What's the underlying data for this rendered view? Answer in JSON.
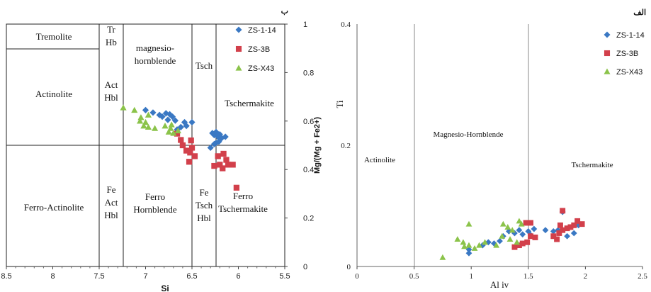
{
  "chart_data": [
    {
      "panel_label": "ب",
      "type": "scatter",
      "xlabel": "Si",
      "ylabel": "Mg/(Mg + Fe2+)",
      "xlim": [
        8.5,
        5.5
      ],
      "ylim": [
        0,
        1
      ],
      "x_ticks": [
        "8.5",
        "8",
        "7.5",
        "7",
        "6.5",
        "6",
        "5.5"
      ],
      "y_ticks": [
        "0",
        "0.2",
        "0.4",
        "0.6",
        "0.8",
        "1"
      ],
      "legend_position": "top-right",
      "field_labels": [
        {
          "text": [
            "Tremolite"
          ]
        },
        {
          "text": [
            "Tr",
            "Hb"
          ]
        },
        {
          "text": [
            "magnesio-",
            "hornblende"
          ]
        },
        {
          "text": [
            "Tsch"
          ]
        },
        {
          "text": [
            "Actinolite"
          ]
        },
        {
          "text": [
            "Act",
            "Hbl"
          ]
        },
        {
          "text": [
            "Tschermakite"
          ]
        },
        {
          "text": [
            "Ferro-Actinolite"
          ]
        },
        {
          "text": [
            "Fe",
            "Act",
            "Hbl"
          ]
        },
        {
          "text": [
            "Ferro",
            "Hornblende"
          ]
        },
        {
          "text": [
            "Fe",
            "Tsch",
            "Hbl"
          ]
        },
        {
          "text": [
            "Ferro",
            "Tschermakite"
          ]
        }
      ],
      "series": [
        {
          "name": "ZS-1-14",
          "marker": "diamond",
          "color": "#3a78c3",
          "points": [
            [
              7,
              0.645
            ],
            [
              6.92,
              0.635
            ],
            [
              6.85,
              0.625
            ],
            [
              6.78,
              0.632
            ],
            [
              6.74,
              0.628
            ],
            [
              6.82,
              0.618
            ],
            [
              6.71,
              0.618
            ],
            [
              6.76,
              0.605
            ],
            [
              6.68,
              0.602
            ],
            [
              6.66,
              0.565
            ],
            [
              6.58,
              0.595
            ],
            [
              6.62,
              0.575
            ],
            [
              6.56,
              0.58
            ],
            [
              6.5,
              0.595
            ],
            [
              6.28,
              0.55
            ],
            [
              6.26,
              0.542
            ],
            [
              6.24,
              0.555
            ],
            [
              6.22,
              0.535
            ],
            [
              6.2,
              0.545
            ],
            [
              6.18,
              0.53
            ],
            [
              6.14,
              0.535
            ],
            [
              6.21,
              0.515
            ],
            [
              6.24,
              0.51
            ],
            [
              6.3,
              0.49
            ],
            [
              6.26,
              0.505
            ]
          ]
        },
        {
          "name": "ZS-3B",
          "marker": "square",
          "color": "#d2404b",
          "points": [
            [
              6.66,
              0.548
            ],
            [
              6.62,
              0.522
            ],
            [
              6.6,
              0.5
            ],
            [
              6.56,
              0.478
            ],
            [
              6.52,
              0.47
            ],
            [
              6.5,
              0.49
            ],
            [
              6.47,
              0.455
            ],
            [
              6.53,
              0.432
            ],
            [
              6.51,
              0.52
            ],
            [
              6.22,
              0.455
            ],
            [
              6.16,
              0.465
            ],
            [
              6.13,
              0.44
            ],
            [
              6.26,
              0.415
            ],
            [
              6.2,
              0.42
            ],
            [
              6.17,
              0.405
            ],
            [
              6.11,
              0.42
            ],
            [
              6.06,
              0.42
            ],
            [
              6.02,
              0.325
            ]
          ]
        },
        {
          "name": "ZS-X43",
          "marker": "triangle",
          "color": "#8bc34a",
          "points": [
            [
              7.24,
              0.655
            ],
            [
              7.12,
              0.645
            ],
            [
              7.05,
              0.615
            ],
            [
              6.97,
              0.625
            ],
            [
              7.06,
              0.6
            ],
            [
              7.0,
              0.595
            ],
            [
              6.97,
              0.575
            ],
            [
              7.02,
              0.58
            ],
            [
              6.9,
              0.57
            ],
            [
              6.79,
              0.58
            ],
            [
              6.73,
              0.57
            ],
            [
              6.75,
              0.555
            ],
            [
              6.7,
              0.55
            ],
            [
              6.65,
              0.56
            ],
            [
              6.72,
              0.585
            ]
          ]
        }
      ]
    },
    {
      "panel_label": "الف",
      "type": "scatter",
      "xlabel": "Al iv",
      "ylabel": "Ti",
      "xlim": [
        0,
        2.5
      ],
      "ylim": [
        0,
        0.4
      ],
      "x_ticks": [
        "0",
        "0.5",
        "1",
        "1.5",
        "2",
        "2.5"
      ],
      "y_ticks": [
        "0",
        "0.2",
        "0.4"
      ],
      "legend_position": "top-right",
      "field_labels": [
        {
          "text": [
            "Actinolite"
          ]
        },
        {
          "text": [
            "Magnesio-Hornblende"
          ]
        },
        {
          "text": [
            "Tschermakite"
          ]
        }
      ],
      "series": [
        {
          "name": "ZS-1-14",
          "marker": "diamond",
          "color": "#3a78c3",
          "points": [
            [
              0.98,
              0.022
            ],
            [
              0.98,
              0.028
            ],
            [
              1.1,
              0.035
            ],
            [
              1.15,
              0.04
            ],
            [
              1.2,
              0.038
            ],
            [
              1.25,
              0.042
            ],
            [
              1.28,
              0.05
            ],
            [
              1.33,
              0.058
            ],
            [
              1.38,
              0.055
            ],
            [
              1.42,
              0.06
            ],
            [
              1.45,
              0.053
            ],
            [
              1.5,
              0.058
            ],
            [
              1.52,
              0.052
            ],
            [
              1.55,
              0.062
            ],
            [
              1.65,
              0.06
            ],
            [
              1.72,
              0.058
            ],
            [
              1.76,
              0.06
            ],
            [
              1.8,
              0.09
            ],
            [
              1.84,
              0.05
            ],
            [
              1.9,
              0.055
            ],
            [
              1.94,
              0.068
            ]
          ]
        },
        {
          "name": "ZS-3B",
          "marker": "square",
          "color": "#d2404b",
          "points": [
            [
              1.38,
              0.032
            ],
            [
              1.42,
              0.035
            ],
            [
              1.45,
              0.038
            ],
            [
              1.49,
              0.04
            ],
            [
              1.52,
              0.05
            ],
            [
              1.56,
              0.048
            ],
            [
              1.48,
              0.072
            ],
            [
              1.52,
              0.072
            ],
            [
              1.72,
              0.05
            ],
            [
              1.75,
              0.045
            ],
            [
              1.78,
              0.068
            ],
            [
              1.8,
              0.06
            ],
            [
              1.84,
              0.063
            ],
            [
              1.87,
              0.065
            ],
            [
              1.9,
              0.068
            ],
            [
              1.93,
              0.075
            ],
            [
              1.97,
              0.07
            ],
            [
              1.8,
              0.092
            ],
            [
              1.77,
              0.055
            ]
          ]
        },
        {
          "name": "ZS-X43",
          "marker": "triangle",
          "color": "#8bc34a",
          "points": [
            [
              0.75,
              0.015
            ],
            [
              0.88,
              0.045
            ],
            [
              0.93,
              0.04
            ],
            [
              0.98,
              0.035
            ],
            [
              1.03,
              0.03
            ],
            [
              1.07,
              0.035
            ],
            [
              1.12,
              0.04
            ],
            [
              0.98,
              0.07
            ],
            [
              1.28,
              0.07
            ],
            [
              1.32,
              0.065
            ],
            [
              1.36,
              0.06
            ],
            [
              1.34,
              0.045
            ],
            [
              1.4,
              0.04
            ],
            [
              1.27,
              0.05
            ],
            [
              1.22,
              0.035
            ],
            [
              1.42,
              0.075
            ],
            [
              1.44,
              0.07
            ],
            [
              0.94,
              0.033
            ]
          ]
        }
      ]
    }
  ]
}
